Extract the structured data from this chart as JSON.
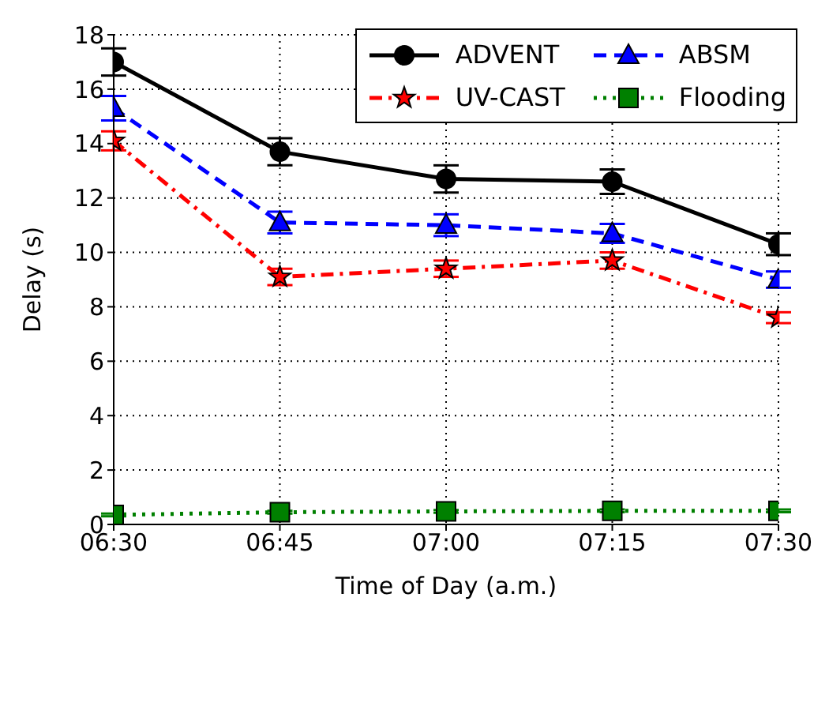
{
  "chart_data": {
    "type": "line",
    "xlabel": "Time of Day (a.m.)",
    "ylabel": "Delay (s)",
    "categories": [
      "06:30",
      "06:45",
      "07:00",
      "07:15",
      "07:30"
    ],
    "series": [
      {
        "name": "ADVENT",
        "color": "#000000",
        "marker": "circle",
        "line_style": "solid",
        "values": [
          17.0,
          13.7,
          12.7,
          12.6,
          10.3
        ],
        "errors": [
          0.5,
          0.5,
          0.5,
          0.45,
          0.4
        ]
      },
      {
        "name": "ABSM",
        "color": "#0000ff",
        "marker": "triangle",
        "line_style": "dashed",
        "values": [
          15.3,
          11.1,
          11.0,
          10.7,
          9.0
        ],
        "errors": [
          0.45,
          0.4,
          0.4,
          0.35,
          0.3
        ]
      },
      {
        "name": "UV-CAST",
        "color": "#ff0000",
        "marker": "star",
        "line_style": "dashdot",
        "values": [
          14.1,
          9.1,
          9.4,
          9.7,
          7.6
        ],
        "errors": [
          0.35,
          0.3,
          0.3,
          0.3,
          0.2
        ]
      },
      {
        "name": "Flooding",
        "color": "#008000",
        "marker": "square",
        "line_style": "dotted",
        "values": [
          0.35,
          0.45,
          0.48,
          0.5,
          0.5
        ],
        "errors": [
          0.05,
          0.05,
          0.05,
          0.05,
          0.05
        ]
      }
    ],
    "ylim": [
      0,
      18
    ],
    "yticks": [
      0,
      2,
      4,
      6,
      8,
      10,
      12,
      14,
      16,
      18
    ],
    "grid": true,
    "legend": "top right"
  }
}
